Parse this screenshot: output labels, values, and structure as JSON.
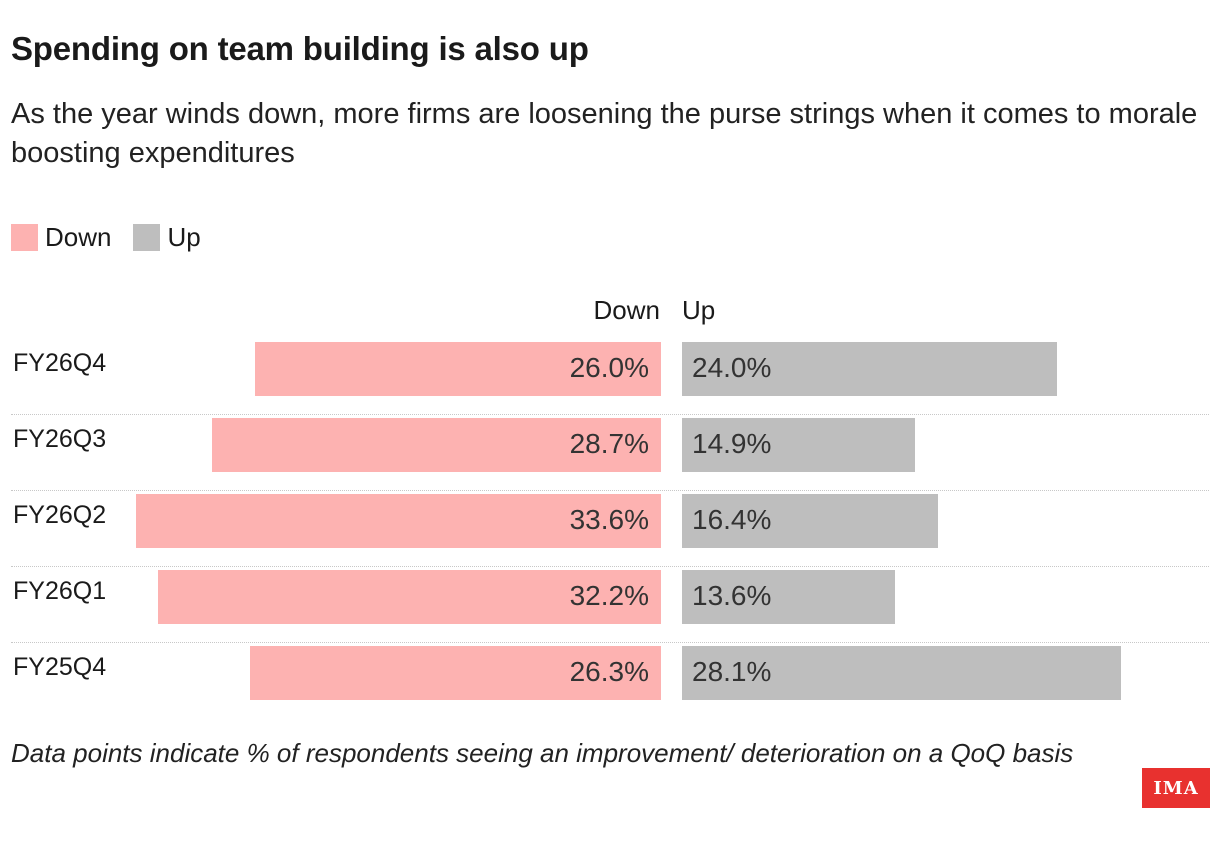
{
  "chart_data": {
    "type": "bar",
    "orientation": "horizontal-diverging",
    "title": "Spending on team building is also up",
    "subtitle": "As the year winds down, more firms are loosening the purse strings when it comes to morale boosting expenditures",
    "categories": [
      "FY26Q4",
      "FY26Q3",
      "FY26Q2",
      "FY26Q1",
      "FY25Q4"
    ],
    "series": [
      {
        "name": "Down",
        "color": "#fdb2b1",
        "values": [
          26.0,
          28.7,
          33.6,
          32.2,
          26.3
        ],
        "labels": [
          "26.0%",
          "28.7%",
          "33.6%",
          "32.2%",
          "26.3%"
        ]
      },
      {
        "name": "Up",
        "color": "#bebebe",
        "values": [
          24.0,
          14.9,
          16.4,
          13.6,
          28.1
        ],
        "labels": [
          "24.0%",
          "14.9%",
          "16.4%",
          "13.6%",
          "28.1%"
        ]
      }
    ],
    "column_headers": {
      "down": "Down",
      "up": "Up"
    },
    "legend": [
      {
        "label": "Down",
        "color": "#fdb2b1"
      },
      {
        "label": "Up",
        "color": "#bebebe"
      }
    ],
    "legend_position": "top-left",
    "footnote": "Data points indicate % of respondents seeing an improvement/ deterioration on a QoQ basis",
    "unit": "%"
  },
  "logo": {
    "text": "IMA",
    "color": "#e8312f"
  }
}
